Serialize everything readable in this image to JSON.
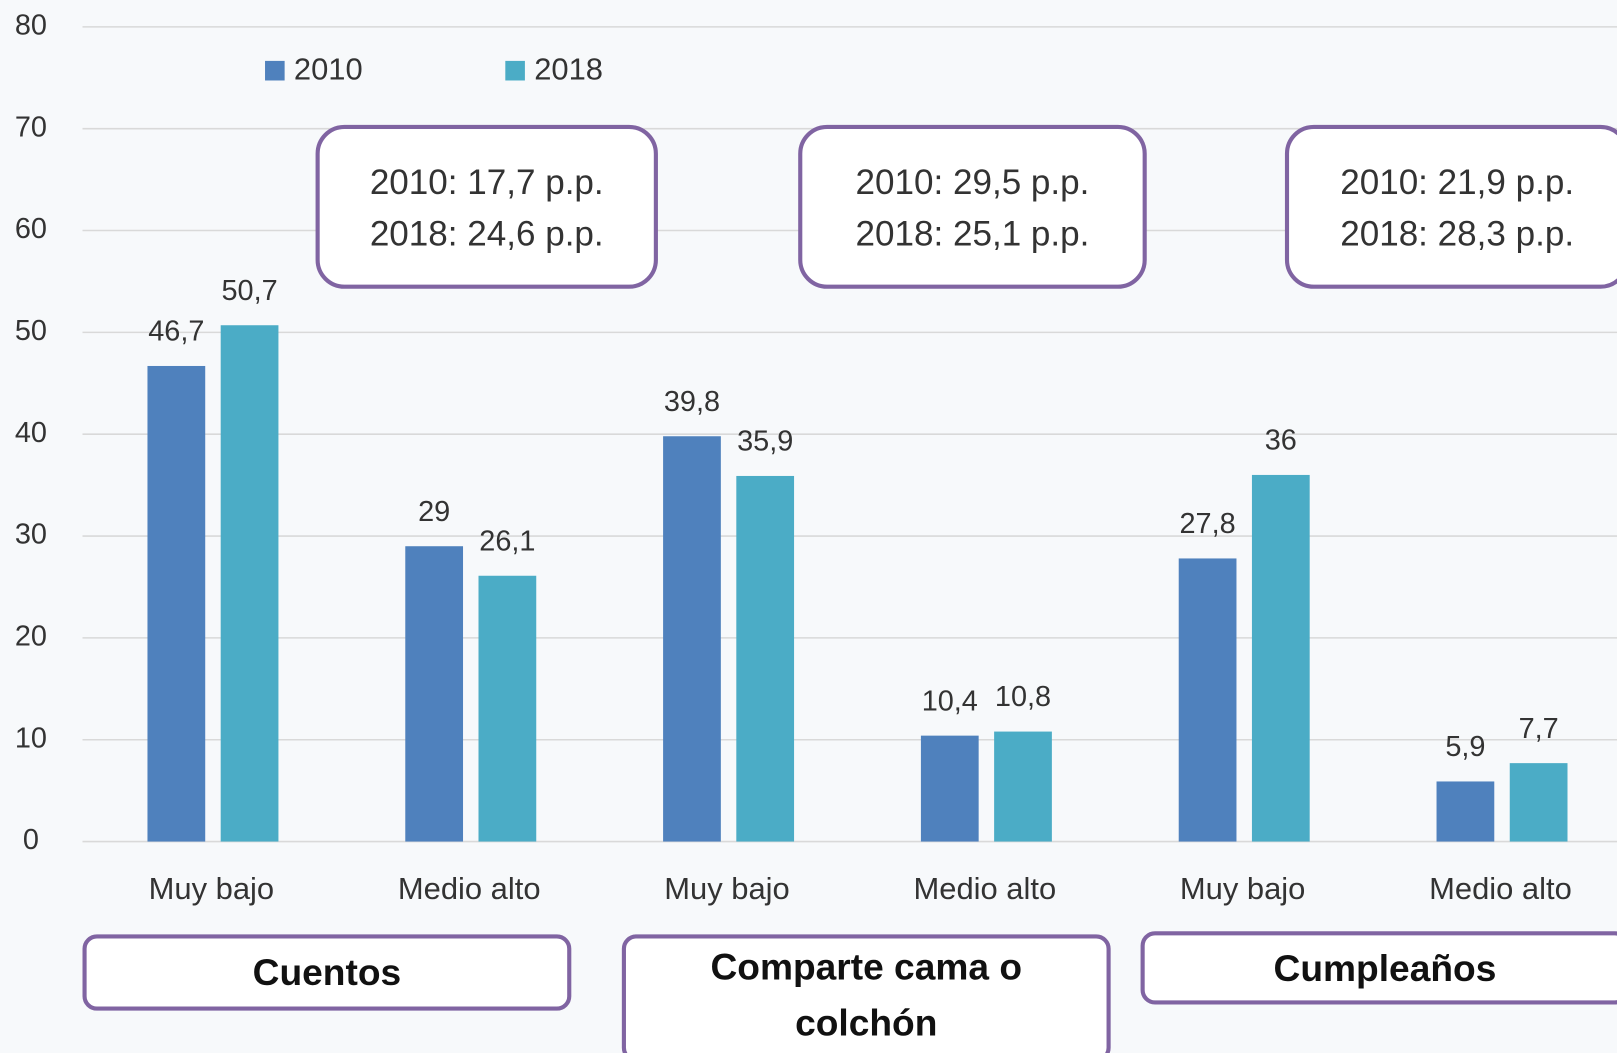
{
  "chart_data": {
    "type": "bar",
    "categories": [
      "Muy bajo",
      "Medio alto",
      "Muy bajo",
      "Medio alto",
      "Muy bajo",
      "Medio alto"
    ],
    "series": [
      {
        "name": "2010",
        "color": "#4f81bd",
        "values": [
          46.7,
          29,
          39.8,
          10.4,
          27.8,
          5.9
        ],
        "value_labels": [
          "46,7",
          "29",
          "39,8",
          "10,4",
          "27,8",
          "5,9"
        ]
      },
      {
        "name": "2018",
        "color": "#4bacc6",
        "values": [
          50.7,
          26.1,
          35.9,
          10.8,
          36,
          7.7
        ],
        "value_labels": [
          "50,7",
          "26,1",
          "35,9",
          "10,8",
          "36",
          "7,7"
        ]
      }
    ],
    "ylim": [
      0,
      80
    ],
    "yticks": [
      0,
      10,
      20,
      30,
      40,
      50,
      60,
      70,
      80
    ],
    "grid": true,
    "legend": "top-left",
    "annotations": [
      [
        "2010: 17,7 p.p.",
        "2018: 24,6 p.p."
      ],
      [
        "2010: 29,5 p.p.",
        "2018: 25,1 p.p."
      ],
      [
        "2010: 21,9 p.p.",
        "2018: 28,3 p.p."
      ]
    ],
    "groups": [
      "Cuentos",
      "Comparte cama o colchón",
      "Cumpleaños"
    ]
  }
}
